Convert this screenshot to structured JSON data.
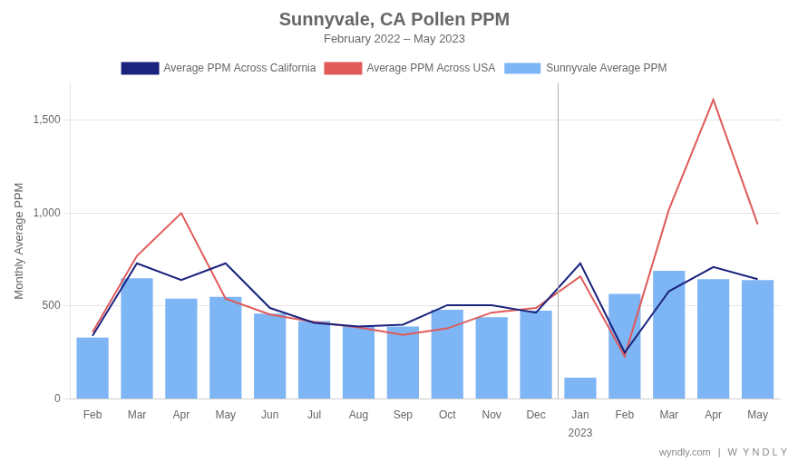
{
  "chart_data": {
    "type": "bar",
    "title": "Sunnyvale, CA Pollen PPM",
    "subtitle": "February 2022 – May 2023",
    "ylabel": "Monthly Average PPM",
    "categories": [
      "Feb",
      "Mar",
      "Apr",
      "May",
      "Jun",
      "Jul",
      "Aug",
      "Sep",
      "Oct",
      "Nov",
      "Dec",
      "Jan",
      "Feb",
      "Mar",
      "Apr",
      "May"
    ],
    "series": [
      {
        "name": "Sunnyvale Average PPM",
        "type": "bar",
        "color": "#7EB5F5",
        "values": [
          330,
          650,
          540,
          550,
          460,
          420,
          390,
          390,
          480,
          440,
          475,
          115,
          565,
          690,
          645,
          640
        ]
      },
      {
        "name": "Average PPM Across California",
        "type": "line",
        "color": "#1a237e",
        "values": [
          340,
          730,
          640,
          730,
          490,
          410,
          390,
          400,
          505,
          505,
          465,
          730,
          250,
          580,
          710,
          645
        ]
      },
      {
        "name": "Average PPM Across USA",
        "type": "line",
        "color": "#e05a5a",
        "values": [
          360,
          770,
          1000,
          540,
          455,
          415,
          385,
          345,
          380,
          465,
          490,
          660,
          230,
          1020,
          1610,
          940
        ]
      }
    ],
    "ylim": [
      0,
      1700
    ],
    "yticks": [
      0,
      500,
      {
        "value": 1000,
        "label": "1,000"
      },
      {
        "value": 1500,
        "label": "1,500"
      }
    ],
    "grid": true,
    "legend": "top",
    "annotations": [
      {
        "text": "2023",
        "category": "Jan"
      },
      {
        "type": "vline",
        "between": [
          "Dec",
          "Jan"
        ],
        "color": "#b0b0b0"
      },
      {
        "text": "wyndly.com"
      },
      {
        "text": "|"
      },
      {
        "text": "W  Y N D L Y"
      }
    ]
  }
}
